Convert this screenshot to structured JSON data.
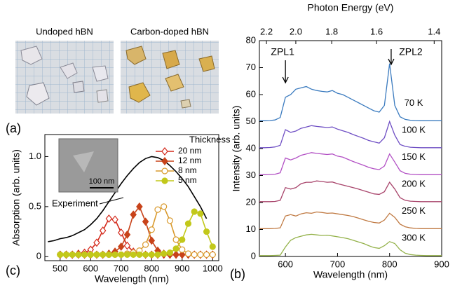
{
  "photos": {
    "labels": [
      "Undoped hBN",
      "Carbon-doped hBN"
    ],
    "panel_label": "(a)"
  },
  "chart_data": [
    {
      "type": "line",
      "panel_label": "(c)",
      "xlabel": "Wavelength (nm)",
      "ylabel": "Absorption (arb. units)",
      "xlim": [
        450,
        1020
      ],
      "xticks": [
        500,
        600,
        700,
        800,
        900,
        1000
      ],
      "ylim": [
        -0.04,
        1.22
      ],
      "yticks": [
        0,
        0.5,
        {
          "value": 1,
          "label": "1.0"
        }
      ],
      "legend_title": "Thickness",
      "annotation": "Experiment",
      "inset_scale": "100 nm",
      "x": [
        460,
        480,
        500,
        520,
        540,
        560,
        580,
        600,
        620,
        640,
        660,
        680,
        700,
        720,
        740,
        760,
        780,
        800,
        820,
        840,
        860,
        880,
        900,
        920,
        940,
        960,
        980,
        1000
      ],
      "series": [
        {
          "name": "Experiment",
          "color": "#000000",
          "marker": "none",
          "legend": false,
          "values": [
            0.15,
            0.16,
            0.18,
            0.19,
            0.21,
            0.24,
            0.27,
            0.32,
            0.38,
            0.46,
            0.55,
            0.64,
            0.73,
            0.81,
            0.88,
            0.94,
            0.98,
            1.0,
            0.99,
            0.96,
            0.91,
            0.85,
            0.78,
            0.7,
            0.6,
            0.5,
            0.38,
            null
          ]
        },
        {
          "name": "20 nm",
          "color": "#d42a1c",
          "marker": "diamond-open",
          "values": [
            null,
            null,
            0.02,
            0.02,
            0.02,
            0.03,
            0.04,
            0.07,
            0.14,
            0.26,
            0.38,
            0.37,
            0.24,
            0.11,
            0.05,
            0.03,
            0.02,
            0.02,
            0.02,
            0.02,
            0.02,
            0.02,
            0.02,
            0.02,
            0.02,
            0.02,
            0.02,
            0.02
          ]
        },
        {
          "name": "12 nm",
          "color": "#c8431a",
          "marker": "diamond",
          "values": [
            null,
            null,
            0.02,
            0.02,
            0.02,
            0.02,
            0.02,
            0.02,
            0.02,
            0.02,
            0.03,
            0.05,
            0.1,
            0.22,
            0.42,
            0.5,
            0.35,
            0.16,
            0.06,
            0.03,
            0.02,
            0.02,
            0.02,
            0.02,
            0.02,
            0.02,
            0.02,
            0.02
          ]
        },
        {
          "name": "8 nm",
          "color": "#d99a2e",
          "marker": "circle-open",
          "values": [
            null,
            null,
            0.02,
            0.02,
            0.02,
            0.02,
            0.02,
            0.02,
            0.02,
            0.02,
            0.02,
            0.02,
            0.02,
            0.03,
            0.04,
            0.06,
            0.12,
            0.27,
            0.47,
            0.5,
            0.36,
            0.17,
            0.07,
            0.03,
            0.02,
            0.02,
            0.02,
            0.02
          ]
        },
        {
          "name": "5 nm",
          "color": "#c2c81a",
          "marker": "circle",
          "values": [
            null,
            null,
            0.02,
            0.02,
            0.02,
            0.02,
            0.02,
            0.02,
            0.02,
            0.02,
            0.02,
            0.02,
            0.02,
            0.02,
            0.02,
            0.02,
            0.02,
            0.02,
            0.02,
            0.03,
            0.04,
            0.08,
            0.17,
            0.33,
            0.45,
            0.43,
            0.25,
            0.1
          ]
        }
      ]
    },
    {
      "type": "line",
      "panel_label": "(b)",
      "xlabel": "Wavelength (nm)",
      "ylabel": "Intensity (arb. units)",
      "x2label": "Photon Energy (eV)",
      "xlim": [
        550,
        900
      ],
      "xticks": [
        600,
        700,
        800,
        900
      ],
      "x2ticks": [
        2.2,
        {
          "value": 2,
          "label": "2.0"
        },
        1.8,
        1.6,
        1.4
      ],
      "ylim": [
        0,
        80
      ],
      "yticks": [
        0,
        10,
        20,
        30,
        40,
        50,
        60,
        70,
        80
      ],
      "annotations": [
        "ZPL1",
        "ZPL2"
      ],
      "x": [
        550,
        560,
        570,
        580,
        590,
        600,
        610,
        620,
        630,
        640,
        650,
        660,
        670,
        680,
        690,
        700,
        710,
        720,
        730,
        740,
        750,
        760,
        770,
        780,
        790,
        800,
        810,
        820,
        830,
        840,
        850,
        860,
        870,
        880,
        890,
        900
      ],
      "series": [
        {
          "name": "70 K",
          "color": "#3b7bbf",
          "values": [
            50.3,
            50.3,
            50.4,
            50.6,
            51.5,
            59.0,
            60.0,
            62.0,
            62.5,
            63.0,
            62.0,
            61.5,
            61.2,
            61.0,
            61.5,
            60.5,
            60.0,
            59.0,
            58.0,
            57.0,
            56.0,
            55.0,
            54.0,
            53.5,
            56.0,
            71.5,
            56.0,
            51.8,
            50.8,
            50.5,
            50.4,
            50.3,
            50.3,
            50.3,
            50.3,
            50.3
          ]
        },
        {
          "name": "100 K",
          "color": "#6f4fc4",
          "values": [
            40.3,
            40.3,
            40.4,
            40.6,
            41.2,
            47.0,
            46.0,
            46.5,
            47.5,
            48.0,
            48.5,
            48.2,
            48.0,
            47.8,
            48.0,
            47.2,
            46.6,
            46.0,
            45.2,
            44.5,
            43.8,
            43.0,
            42.5,
            42.0,
            44.0,
            50.0,
            45.0,
            41.5,
            40.8,
            40.5,
            40.4,
            40.3,
            40.3,
            40.3,
            40.3,
            40.3
          ]
        },
        {
          "name": "150 K",
          "color": "#b24fc4",
          "values": [
            30.3,
            30.3,
            30.4,
            30.5,
            31.0,
            36.5,
            35.8,
            36.5,
            37.5,
            38.0,
            38.5,
            38.2,
            38.0,
            37.8,
            38.0,
            37.2,
            36.8,
            36.0,
            35.2,
            34.5,
            33.8,
            33.0,
            32.5,
            32.2,
            33.5,
            38.0,
            35.0,
            31.8,
            30.8,
            30.5,
            30.4,
            30.3,
            30.3,
            30.3,
            30.3,
            30.3
          ]
        },
        {
          "name": "200 K",
          "color": "#a8446b",
          "values": [
            20.3,
            20.3,
            20.3,
            20.4,
            20.8,
            25.5,
            25.0,
            25.5,
            27.0,
            27.5,
            27.5,
            28.0,
            27.8,
            27.5,
            27.6,
            27.0,
            26.5,
            26.0,
            25.5,
            25.0,
            24.4,
            23.8,
            23.2,
            23.0,
            24.0,
            27.5,
            25.0,
            21.8,
            20.8,
            20.5,
            20.4,
            20.3,
            20.3,
            20.3,
            20.3,
            20.3
          ]
        },
        {
          "name": "250 K",
          "color": "#c07a43",
          "values": [
            10.3,
            10.3,
            10.3,
            10.4,
            10.6,
            15.0,
            15.5,
            15.0,
            15.8,
            16.2,
            16.0,
            16.5,
            16.3,
            16.0,
            16.1,
            15.8,
            15.5,
            15.2,
            14.8,
            14.2,
            13.6,
            13.0,
            12.6,
            12.4,
            13.5,
            16.0,
            14.5,
            12.0,
            11.0,
            10.6,
            10.4,
            10.3,
            10.3,
            10.3,
            10.3,
            10.3
          ]
        },
        {
          "name": "300 K",
          "color": "#94b24a",
          "values": [
            0.3,
            0.3,
            0.3,
            0.4,
            0.5,
            3.5,
            6.0,
            7.0,
            7.5,
            8.0,
            8.2,
            8.0,
            7.8,
            7.9,
            7.6,
            7.3,
            7.0,
            6.6,
            6.0,
            5.4,
            4.8,
            4.0,
            3.3,
            3.0,
            4.0,
            5.5,
            4.8,
            2.5,
            1.2,
            0.7,
            0.5,
            0.4,
            0.3,
            0.3,
            0.3,
            0.3
          ]
        }
      ]
    }
  ]
}
